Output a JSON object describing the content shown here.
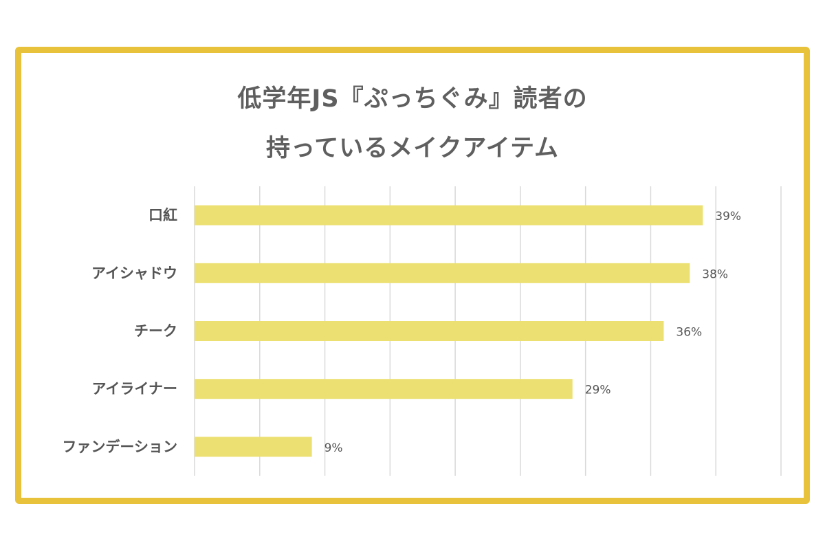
{
  "chart_data": {
    "type": "bar",
    "orientation": "horizontal",
    "title_lines": [
      "低学年JS『ぷっちぐみ』読者の",
      "持っているメイクアイテム"
    ],
    "categories": [
      "口紅",
      "アイシャドウ",
      "チーク",
      "アイライナー",
      "ファンデーション"
    ],
    "values": [
      39,
      38,
      36,
      29,
      9
    ],
    "value_labels": [
      "39%",
      "38%",
      "36%",
      "29%",
      "9%"
    ],
    "xlim": [
      0,
      45
    ],
    "x_gridline_step": 5,
    "grid": true,
    "legend": "none",
    "xlabel": "",
    "ylabel": ""
  },
  "colors": {
    "bar": "#ece072",
    "frame": "#e8c23a",
    "grid": "#d9d9d9",
    "text": "#555555"
  }
}
